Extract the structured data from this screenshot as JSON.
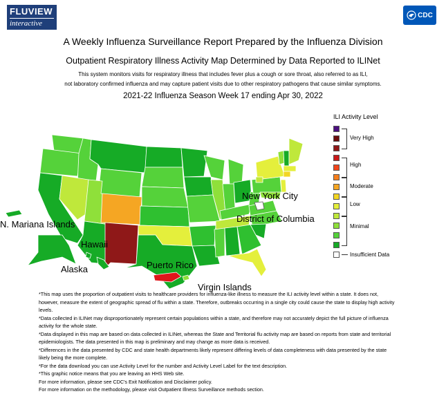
{
  "header": {
    "logo_line1": "FLUVIEW",
    "logo_line2": "interactive",
    "cdc_logo": "CDC",
    "title": "A Weekly Influenza Surveillance Report Prepared by the Influenza Division",
    "subtitle": "Outpatient Respiratory Illness Activity Map Determined by Data Reported to ILINet",
    "description_line1": "This system monitors visits for respiratory illness that includes fever plus a cough or sore throat, also referred to as ILI,",
    "description_line2": "not laboratory confirmed influenza and may capture patient visits due to other respiratory pathogens that cause similar symptoms.",
    "season_line": "2021-22 Influenza Season Week 17 ending Apr 30, 2022"
  },
  "legend": {
    "title": "ILI Activity Level",
    "groups": [
      "Very High",
      "High",
      "Moderate",
      "Low",
      "Minimal"
    ],
    "insufficient": "Insufficient Data",
    "colors": [
      "#4b0f7f",
      "#6b0d0d",
      "#8f1818",
      "#c81a1a",
      "#f0451b",
      "#f57e1c",
      "#f5a623",
      "#f2d623",
      "#e4ef3c",
      "#bfe83b",
      "#8fe03a",
      "#55d23a",
      "#16ab26"
    ]
  },
  "map": {
    "labels": {
      "nmi": "N. Mariana Islands",
      "hawaii": "Hawaii",
      "alaska": "Alaska",
      "puerto_rico": "Puerto Rico",
      "virgin_islands": "Virgin Islands",
      "nyc": "New York City",
      "dc": "District of Columbia"
    },
    "activity_colors": {
      "minimal_dark": "#16ab26",
      "minimal": "#2fc030",
      "minimal_light": "#55d23a",
      "low": "#8fe03a",
      "low_light": "#bfe83b",
      "yellow": "#e4ef3c",
      "moderate": "#f5a623",
      "very_high": "#8f1818",
      "high": "#e0161b"
    }
  },
  "notes": [
    "*This map uses the proportion of outpatient visits to healthcare providers for influenza-like illness to measure the ILI activity level within a state. It does not, however, measure the extent of geographic spread of flu within a state. Therefore, outbreaks occurring in a single city could cause the state to display high activity levels.",
    "*Data collected in ILINet may disproportionately represent certain populations within a state, and therefore may not accurately depict the full picture of influenza activity for the whole state.",
    "*Data displayed in this map are based on data collected in ILINet, whereas the State and Territorial flu activity map are based on reports from state and territorial epidemiologists. The data presented in this map is preliminary and may change as more data is received.",
    "*Differences in the data presented by CDC and state health departments likely represent differing levels of data completeness with data presented by the state likely being the more complete.",
    "*For the data download you can use Activity Level for the number and Activity Level Label for the text description.",
    "*This graphic notice means that you are leaving an HHS Web site.",
    "For more information, please see CDC's Exit Notification and Disclaimer policy.",
    "For more information on the methodology, please visit Outpatient Illness Surveillance methods section."
  ]
}
